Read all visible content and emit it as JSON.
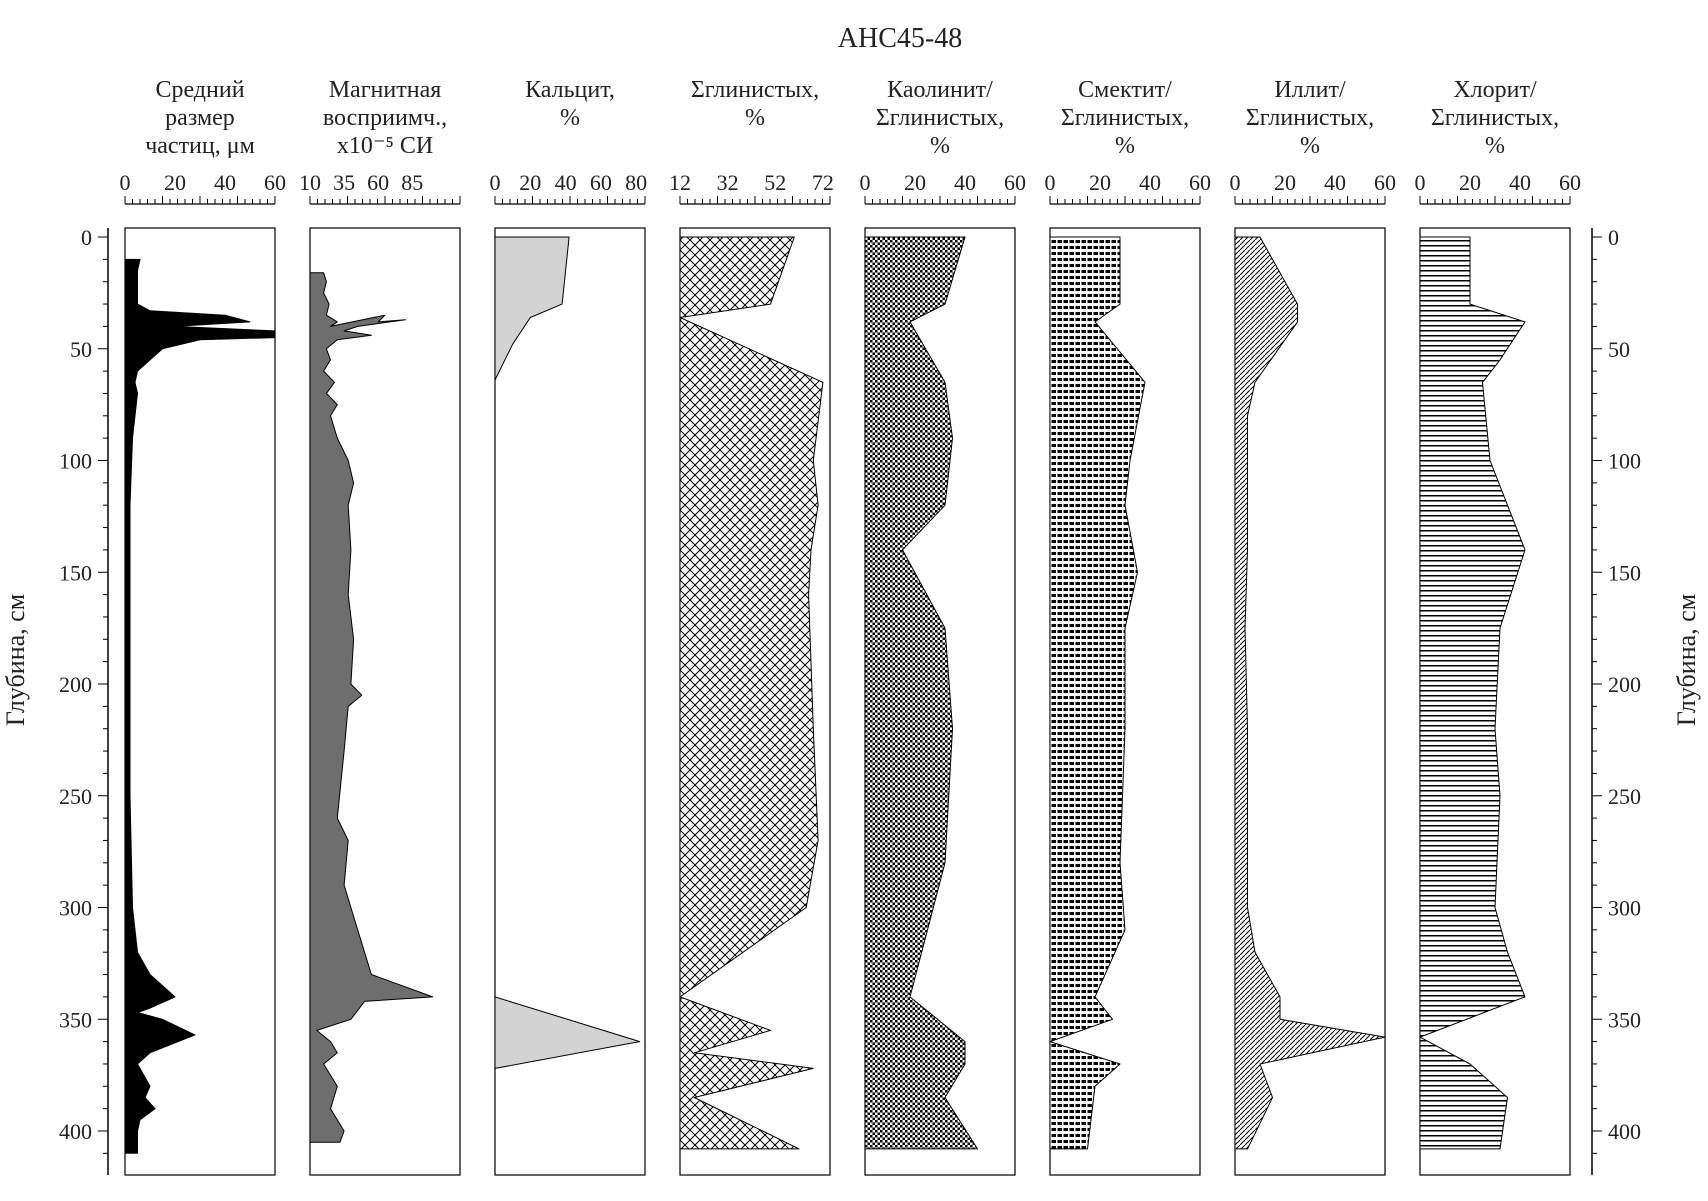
{
  "chart_data": {
    "type": "area",
    "title": "АНС45-48",
    "ylabel_left": "Глубина, см",
    "ylabel_right": "Глубина, см",
    "ylim": [
      0,
      420
    ],
    "y_reversed": true,
    "depth_ticks": [
      0,
      50,
      100,
      150,
      200,
      250,
      300,
      350,
      400
    ],
    "panels": [
      {
        "header": [
          "Средний",
          "размер",
          "частиц, μм"
        ],
        "xlim": [
          0,
          60
        ],
        "ticks": [
          0,
          20,
          40,
          60
        ],
        "fill": "#000000",
        "pattern": "solid",
        "points": [
          [
            0,
            10
          ],
          [
            6,
            10
          ],
          [
            5,
            15
          ],
          [
            5,
            25
          ],
          [
            5,
            30
          ],
          [
            10,
            33
          ],
          [
            40,
            35
          ],
          [
            50,
            38
          ],
          [
            20,
            40
          ],
          [
            60,
            42
          ],
          [
            60,
            45
          ],
          [
            30,
            46
          ],
          [
            15,
            50
          ],
          [
            10,
            55
          ],
          [
            5,
            60
          ],
          [
            4,
            65
          ],
          [
            5,
            70
          ],
          [
            4,
            80
          ],
          [
            3,
            90
          ],
          [
            2,
            120
          ],
          [
            2,
            200
          ],
          [
            2,
            250
          ],
          [
            3,
            300
          ],
          [
            5,
            320
          ],
          [
            10,
            330
          ],
          [
            20,
            340
          ],
          [
            10,
            345
          ],
          [
            5,
            347
          ],
          [
            15,
            350
          ],
          [
            28,
            357
          ],
          [
            10,
            365
          ],
          [
            5,
            370
          ],
          [
            10,
            380
          ],
          [
            8,
            385
          ],
          [
            12,
            390
          ],
          [
            6,
            395
          ],
          [
            5,
            400
          ],
          [
            5,
            410
          ],
          [
            0,
            410
          ]
        ]
      },
      {
        "header": [
          "Магнитная",
          "восприимч.,",
          "x10⁻⁵ СИ"
        ],
        "xlim": [
          10,
          120
        ],
        "ticks": [
          10,
          35,
          60,
          85
        ],
        "fill": "#6e6e6e",
        "pattern": "solid",
        "points": [
          [
            10,
            16
          ],
          [
            20,
            16
          ],
          [
            22,
            20
          ],
          [
            20,
            25
          ],
          [
            24,
            30
          ],
          [
            22,
            35
          ],
          [
            30,
            38
          ],
          [
            25,
            40
          ],
          [
            65,
            35
          ],
          [
            60,
            38
          ],
          [
            80,
            37
          ],
          [
            45,
            40
          ],
          [
            35,
            42
          ],
          [
            55,
            44
          ],
          [
            30,
            46
          ],
          [
            22,
            50
          ],
          [
            25,
            55
          ],
          [
            20,
            60
          ],
          [
            28,
            65
          ],
          [
            22,
            70
          ],
          [
            30,
            75
          ],
          [
            25,
            80
          ],
          [
            30,
            90
          ],
          [
            38,
            100
          ],
          [
            42,
            110
          ],
          [
            38,
            120
          ],
          [
            40,
            140
          ],
          [
            38,
            160
          ],
          [
            42,
            180
          ],
          [
            40,
            200
          ],
          [
            48,
            205
          ],
          [
            38,
            210
          ],
          [
            35,
            230
          ],
          [
            30,
            260
          ],
          [
            38,
            270
          ],
          [
            35,
            290
          ],
          [
            40,
            300
          ],
          [
            45,
            310
          ],
          [
            50,
            320
          ],
          [
            55,
            330
          ],
          [
            100,
            340
          ],
          [
            50,
            342
          ],
          [
            40,
            350
          ],
          [
            15,
            355
          ],
          [
            25,
            360
          ],
          [
            30,
            365
          ],
          [
            20,
            370
          ],
          [
            30,
            380
          ],
          [
            25,
            390
          ],
          [
            35,
            400
          ],
          [
            32,
            405
          ],
          [
            10,
            405
          ]
        ]
      },
      {
        "header": [
          "Кальцит,",
          "%"
        ],
        "xlim": [
          0,
          85
        ],
        "ticks": [
          0,
          20,
          40,
          60,
          80
        ],
        "fill": "#d3d3d3",
        "pattern": "solid",
        "points": [
          [
            0,
            0
          ],
          [
            42,
            0
          ],
          [
            38,
            30
          ],
          [
            20,
            36
          ],
          [
            10,
            48
          ],
          [
            0,
            64
          ],
          [
            0,
            340
          ],
          [
            82,
            360
          ],
          [
            0,
            372
          ]
        ]
      },
      {
        "header": [
          "Σглинистых,",
          "%"
        ],
        "xlim": [
          12,
          75
        ],
        "ticks": [
          12,
          32,
          52,
          72
        ],
        "fill": "#000000",
        "pattern": "crosshatch",
        "points": [
          [
            12,
            0
          ],
          [
            60,
            0
          ],
          [
            50,
            30
          ],
          [
            12,
            36
          ],
          [
            72,
            65
          ],
          [
            68,
            100
          ],
          [
            70,
            120
          ],
          [
            67,
            140
          ],
          [
            66,
            160
          ],
          [
            68,
            220
          ],
          [
            70,
            270
          ],
          [
            65,
            300
          ],
          [
            12,
            340
          ],
          [
            50,
            355
          ],
          [
            18,
            365
          ],
          [
            68,
            372
          ],
          [
            18,
            385
          ],
          [
            62,
            408
          ],
          [
            12,
            408
          ]
        ]
      },
      {
        "header": [
          "Каолинит/",
          "Σглинистых,",
          "%"
        ],
        "xlim": [
          0,
          60
        ],
        "ticks": [
          0,
          20,
          40,
          60
        ],
        "fill": "#000000",
        "pattern": "checker",
        "points": [
          [
            0,
            0
          ],
          [
            40,
            0
          ],
          [
            32,
            30
          ],
          [
            18,
            38
          ],
          [
            32,
            65
          ],
          [
            35,
            90
          ],
          [
            32,
            120
          ],
          [
            15,
            140
          ],
          [
            32,
            175
          ],
          [
            35,
            220
          ],
          [
            32,
            280
          ],
          [
            18,
            340
          ],
          [
            40,
            360
          ],
          [
            40,
            370
          ],
          [
            32,
            385
          ],
          [
            45,
            408
          ],
          [
            0,
            408
          ]
        ]
      },
      {
        "header": [
          "Смектит/",
          "Σглинистых,",
          "%"
        ],
        "xlim": [
          0,
          60
        ],
        "ticks": [
          0,
          20,
          40,
          60
        ],
        "fill": "#000000",
        "pattern": "vertical",
        "points": [
          [
            0,
            0
          ],
          [
            28,
            0
          ],
          [
            28,
            30
          ],
          [
            18,
            38
          ],
          [
            38,
            65
          ],
          [
            32,
            100
          ],
          [
            30,
            120
          ],
          [
            35,
            150
          ],
          [
            30,
            175
          ],
          [
            30,
            220
          ],
          [
            28,
            280
          ],
          [
            30,
            310
          ],
          [
            18,
            340
          ],
          [
            25,
            350
          ],
          [
            0,
            360
          ],
          [
            28,
            370
          ],
          [
            18,
            380
          ],
          [
            15,
            408
          ],
          [
            0,
            408
          ]
        ]
      },
      {
        "header": [
          "Иллит/",
          "Σглинистых,",
          "%"
        ],
        "xlim": [
          0,
          60
        ],
        "ticks": [
          0,
          20,
          40,
          60
        ],
        "fill": "#000000",
        "pattern": "diagonal",
        "points": [
          [
            0,
            0
          ],
          [
            10,
            0
          ],
          [
            25,
            30
          ],
          [
            25,
            38
          ],
          [
            8,
            65
          ],
          [
            5,
            80
          ],
          [
            5,
            140
          ],
          [
            4,
            175
          ],
          [
            5,
            220
          ],
          [
            5,
            300
          ],
          [
            8,
            320
          ],
          [
            18,
            340
          ],
          [
            18,
            350
          ],
          [
            60,
            358
          ],
          [
            10,
            370
          ],
          [
            15,
            385
          ],
          [
            5,
            408
          ],
          [
            0,
            408
          ]
        ]
      },
      {
        "header": [
          "Хлорит/",
          "Σглинистых,",
          "%"
        ],
        "xlim": [
          0,
          60
        ],
        "ticks": [
          0,
          20,
          40,
          60
        ],
        "fill": "#000000",
        "pattern": "horizontal",
        "points": [
          [
            0,
            0
          ],
          [
            20,
            0
          ],
          [
            20,
            30
          ],
          [
            42,
            38
          ],
          [
            32,
            55
          ],
          [
            25,
            65
          ],
          [
            28,
            100
          ],
          [
            35,
            120
          ],
          [
            42,
            140
          ],
          [
            32,
            175
          ],
          [
            30,
            220
          ],
          [
            32,
            250
          ],
          [
            30,
            300
          ],
          [
            35,
            320
          ],
          [
            42,
            340
          ],
          [
            0,
            358
          ],
          [
            20,
            370
          ],
          [
            35,
            385
          ],
          [
            32,
            408
          ],
          [
            0,
            408
          ]
        ]
      }
    ]
  }
}
